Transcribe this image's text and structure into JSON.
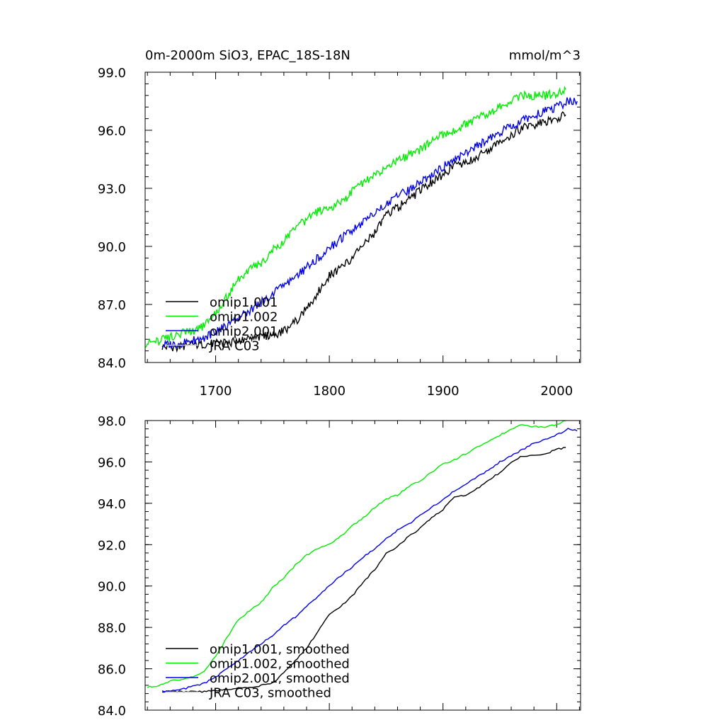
{
  "chart_data": [
    {
      "type": "line",
      "title": "0m-2000m SiO3, EPAC_18S-18N",
      "units": "mmol/m^3",
      "xlim": [
        1638,
        2021
      ],
      "ylim": [
        84.0,
        99.0
      ],
      "x_ticks": [
        1700,
        1800,
        1900,
        2000
      ],
      "x_tick_labels": [
        "1700",
        "1800",
        "1900",
        "2000"
      ],
      "y_ticks": [
        84,
        87,
        90,
        93,
        96,
        99
      ],
      "y_tick_labels": [
        "84.0",
        "87.0",
        "90.0",
        "93.0",
        "96.0",
        "99.0"
      ],
      "grid": false,
      "legend_position": "lower-left",
      "series": [
        {
          "name": "omip1.001",
          "color": "#000000",
          "x": [
            1653,
            1665,
            1680,
            1700,
            1710,
            1720,
            1740,
            1760,
            1770,
            1780,
            1790,
            1800,
            1810,
            1820,
            1830,
            1840,
            1850,
            1860,
            1870,
            1880,
            1890,
            1900,
            1910,
            1920,
            1930,
            1940,
            1950,
            1960,
            1970,
            1980,
            1990,
            2000,
            2008
          ],
          "y": [
            84.8,
            84.8,
            84.9,
            85.0,
            85.0,
            85.1,
            85.3,
            85.6,
            86.1,
            86.8,
            87.6,
            88.5,
            88.9,
            89.4,
            90.1,
            90.7,
            91.6,
            92.0,
            92.4,
            92.9,
            93.3,
            93.7,
            94.2,
            94.3,
            94.6,
            95.0,
            95.3,
            95.8,
            96.1,
            96.3,
            96.4,
            96.6,
            96.8
          ]
        },
        {
          "name": "omip1.002",
          "color": "#00ee00",
          "x": [
            1638,
            1650,
            1660,
            1670,
            1680,
            1690,
            1700,
            1710,
            1720,
            1730,
            1740,
            1750,
            1760,
            1770,
            1780,
            1790,
            1800,
            1810,
            1820,
            1830,
            1840,
            1850,
            1860,
            1870,
            1880,
            1890,
            1900,
            1910,
            1920,
            1930,
            1940,
            1950,
            1960,
            1970,
            1980,
            1990,
            2000,
            2008
          ],
          "y": [
            85.0,
            85.1,
            85.3,
            85.5,
            85.6,
            85.9,
            86.5,
            87.4,
            88.3,
            88.8,
            89.1,
            89.8,
            90.3,
            90.9,
            91.4,
            91.8,
            92.0,
            92.3,
            92.8,
            93.3,
            93.7,
            94.1,
            94.4,
            94.7,
            95.0,
            95.4,
            95.8,
            96.0,
            96.3,
            96.6,
            96.9,
            97.2,
            97.5,
            97.8,
            97.8,
            97.8,
            97.9,
            98.1
          ]
        },
        {
          "name": "omip2.001",
          "color": "#0000ee",
          "x": [
            1653,
            1670,
            1690,
            1700,
            1710,
            1720,
            1730,
            1740,
            1750,
            1760,
            1770,
            1780,
            1790,
            1800,
            1810,
            1820,
            1830,
            1840,
            1850,
            1860,
            1870,
            1880,
            1890,
            1900,
            1910,
            1920,
            1930,
            1940,
            1950,
            1960,
            1970,
            1980,
            1990,
            2000,
            2010,
            2018
          ],
          "y": [
            84.9,
            85.0,
            85.3,
            85.6,
            85.9,
            86.3,
            86.7,
            87.1,
            87.5,
            88.0,
            88.4,
            88.9,
            89.4,
            89.9,
            90.4,
            90.8,
            91.3,
            91.7,
            92.2,
            92.6,
            92.9,
            93.3,
            93.7,
            94.1,
            94.5,
            94.8,
            95.2,
            95.5,
            95.9,
            96.2,
            96.5,
            96.8,
            97.0,
            97.2,
            97.5,
            97.5
          ]
        },
        {
          "name": "JRA C03",
          "color": "#c8c8c8",
          "x": [],
          "y": []
        }
      ]
    },
    {
      "type": "line",
      "title": "",
      "xlim": [
        1638,
        2021
      ],
      "ylim": [
        84.0,
        98.0
      ],
      "x_ticks": [
        1700,
        1800,
        1900,
        2000
      ],
      "y_ticks": [
        84,
        86,
        88,
        90,
        92,
        94,
        96,
        98
      ],
      "y_tick_labels": [
        "84.0",
        "86.0",
        "88.0",
        "90.0",
        "92.0",
        "94.0",
        "96.0",
        "98.0"
      ],
      "grid": false,
      "legend_position": "lower-left",
      "series": [
        {
          "name": "omip1.001, smoothed",
          "color": "#000000",
          "x": [
            1653,
            1670,
            1690,
            1710,
            1730,
            1750,
            1760,
            1770,
            1780,
            1790,
            1800,
            1810,
            1820,
            1830,
            1840,
            1850,
            1860,
            1870,
            1880,
            1890,
            1900,
            1910,
            1920,
            1930,
            1940,
            1950,
            1960,
            1970,
            1980,
            1990,
            2000,
            2008
          ],
          "y": [
            84.9,
            84.9,
            84.9,
            85.0,
            85.1,
            85.3,
            85.8,
            86.4,
            87.0,
            87.8,
            88.6,
            89.0,
            89.5,
            90.2,
            90.8,
            91.6,
            91.9,
            92.4,
            92.8,
            93.3,
            93.7,
            94.3,
            94.4,
            94.7,
            95.1,
            95.5,
            96.0,
            96.3,
            96.3,
            96.4,
            96.6,
            96.7
          ]
        },
        {
          "name": "omip1.002, smoothed",
          "color": "#00ee00",
          "x": [
            1640,
            1650,
            1660,
            1670,
            1680,
            1690,
            1700,
            1710,
            1720,
            1730,
            1740,
            1750,
            1760,
            1770,
            1780,
            1790,
            1800,
            1810,
            1820,
            1830,
            1840,
            1850,
            1860,
            1870,
            1880,
            1890,
            1900,
            1910,
            1920,
            1930,
            1940,
            1950,
            1960,
            1970,
            1980,
            1990,
            2000,
            2008
          ],
          "y": [
            85.1,
            85.2,
            85.4,
            85.5,
            85.6,
            85.9,
            86.6,
            87.5,
            88.4,
            88.8,
            89.2,
            89.9,
            90.4,
            91.0,
            91.5,
            91.8,
            92.0,
            92.4,
            92.9,
            93.3,
            93.8,
            94.2,
            94.4,
            94.8,
            95.1,
            95.5,
            95.9,
            96.1,
            96.4,
            96.7,
            97.0,
            97.3,
            97.6,
            97.8,
            97.7,
            97.7,
            97.8,
            98.0
          ]
        },
        {
          "name": "omip2.001, smoothed",
          "color": "#0000ee",
          "x": [
            1653,
            1670,
            1690,
            1700,
            1710,
            1720,
            1730,
            1740,
            1750,
            1760,
            1770,
            1780,
            1790,
            1800,
            1810,
            1820,
            1830,
            1840,
            1850,
            1860,
            1870,
            1880,
            1890,
            1900,
            1910,
            1920,
            1930,
            1940,
            1950,
            1960,
            1970,
            1980,
            1990,
            2000,
            2010,
            2018
          ],
          "y": [
            84.9,
            85.0,
            85.3,
            85.6,
            86.0,
            86.4,
            86.8,
            87.2,
            87.6,
            88.1,
            88.5,
            89.0,
            89.5,
            90.0,
            90.5,
            90.9,
            91.4,
            91.8,
            92.3,
            92.7,
            93.0,
            93.4,
            93.8,
            94.2,
            94.6,
            94.9,
            95.3,
            95.6,
            96.0,
            96.3,
            96.6,
            96.9,
            97.1,
            97.3,
            97.6,
            97.5
          ]
        },
        {
          "name": "JRA C03, smoothed",
          "color": "#c8c8c8",
          "x": [],
          "y": []
        }
      ]
    }
  ]
}
